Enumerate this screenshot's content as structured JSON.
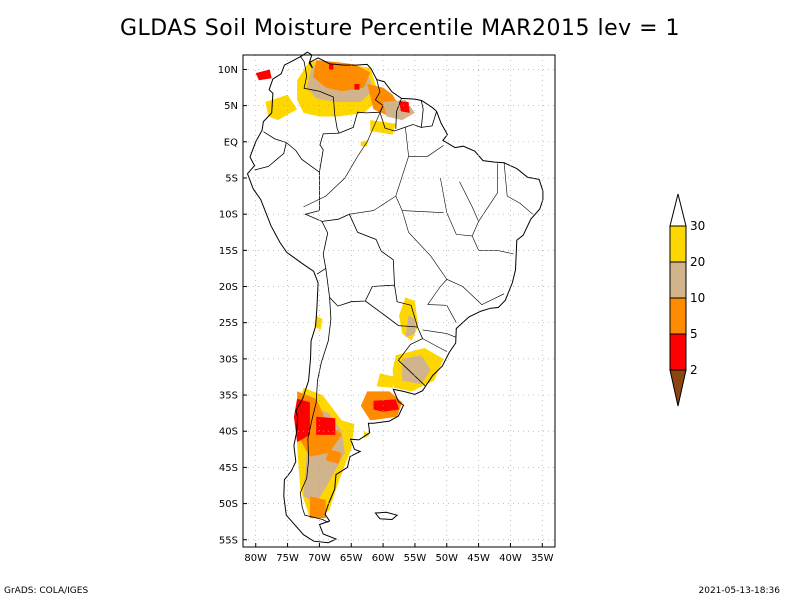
{
  "title": "GLDAS Soil Moisture Percentile MAR2015 lev = 1",
  "footer": {
    "left": "GrADS: COLA/IGES",
    "right": "2021-05-13-18:36"
  },
  "map": {
    "region": "South America",
    "lon_range": [
      -82,
      -33
    ],
    "lat_range": [
      -56,
      12
    ],
    "lat_ticks": [
      {
        "value": 10,
        "label": "10N"
      },
      {
        "value": 5,
        "label": "5N"
      },
      {
        "value": 0,
        "label": "EQ"
      },
      {
        "value": -5,
        "label": "5S"
      },
      {
        "value": -10,
        "label": "10S"
      },
      {
        "value": -15,
        "label": "15S"
      },
      {
        "value": -20,
        "label": "20S"
      },
      {
        "value": -25,
        "label": "25S"
      },
      {
        "value": -30,
        "label": "30S"
      },
      {
        "value": -35,
        "label": "35S"
      },
      {
        "value": -40,
        "label": "40S"
      },
      {
        "value": -45,
        "label": "45S"
      },
      {
        "value": -50,
        "label": "50S"
      },
      {
        "value": -55,
        "label": "55S"
      }
    ],
    "lon_ticks": [
      {
        "value": -80,
        "label": "80W"
      },
      {
        "value": -75,
        "label": "75W"
      },
      {
        "value": -70,
        "label": "70W"
      },
      {
        "value": -65,
        "label": "65W"
      },
      {
        "value": -60,
        "label": "60W"
      },
      {
        "value": -55,
        "label": "55W"
      },
      {
        "value": -50,
        "label": "50W"
      },
      {
        "value": -45,
        "label": "45W"
      },
      {
        "value": -40,
        "label": "40W"
      },
      {
        "value": -35,
        "label": "35W"
      }
    ],
    "grid": true,
    "colors": {
      "p2": "#8b4513",
      "p2_5": "#ff0000",
      "p5_10": "#ff8c00",
      "p10_20": "#d2b48c",
      "p20_30": "#ffd700",
      "above30": "#ffffff"
    }
  },
  "colorbar": {
    "levels": [
      "2",
      "5",
      "10",
      "20",
      "30"
    ],
    "colors": [
      "#8b4513",
      "#ff0000",
      "#ff8c00",
      "#d2b48c",
      "#ffd700",
      "#ffffff"
    ]
  }
}
